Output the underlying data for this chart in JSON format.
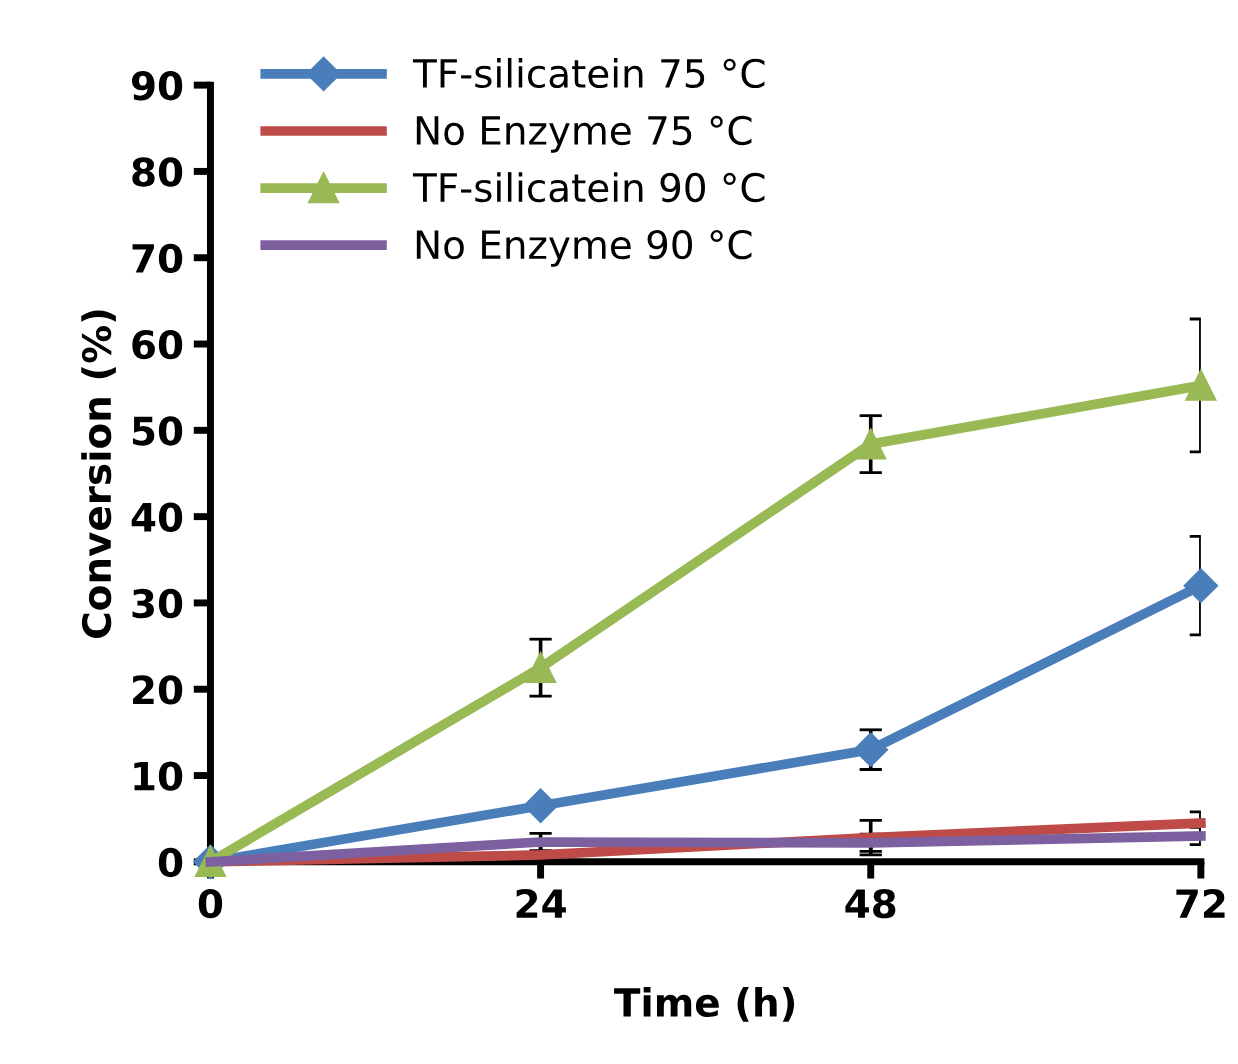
{
  "chart_data": {
    "type": "line",
    "xlabel": "Time (h)",
    "ylabel": "Conversion (%)",
    "x": [
      0,
      24,
      48,
      72
    ],
    "xlim": [
      0,
      72
    ],
    "xticks": [
      0,
      24,
      48,
      72
    ],
    "ylim": [
      0,
      90
    ],
    "yticks": [
      0,
      10,
      20,
      30,
      40,
      50,
      60,
      70,
      80,
      90
    ],
    "grid": false,
    "legend": "top left",
    "line_style": "solid",
    "series": [
      {
        "name": "TF-silicatein 75 °C",
        "color": "#4a7ebb",
        "marker": "diamond",
        "values": [
          0,
          6.5,
          13,
          32
        ],
        "errors": [
          null,
          null,
          2.3,
          5.7
        ]
      },
      {
        "name": "No Enzyme 75 °C",
        "color": "#be4b48",
        "marker": "none",
        "values": [
          0,
          0.8,
          2.8,
          4.5
        ],
        "errors": [
          null,
          1.8,
          2,
          1.3
        ]
      },
      {
        "name": "TF-silicatein 90 °C",
        "color": "#98b954",
        "marker": "triangle",
        "values": [
          0,
          22.5,
          48.4,
          55.2
        ],
        "errors": [
          null,
          3.3,
          3.3,
          7.7
        ]
      },
      {
        "name": "No Enzyme 90 °C",
        "color": "#7d60a0",
        "marker": "none",
        "values": [
          0,
          2.3,
          2.2,
          3
        ],
        "errors": [
          null,
          1,
          1,
          1
        ]
      }
    ]
  }
}
